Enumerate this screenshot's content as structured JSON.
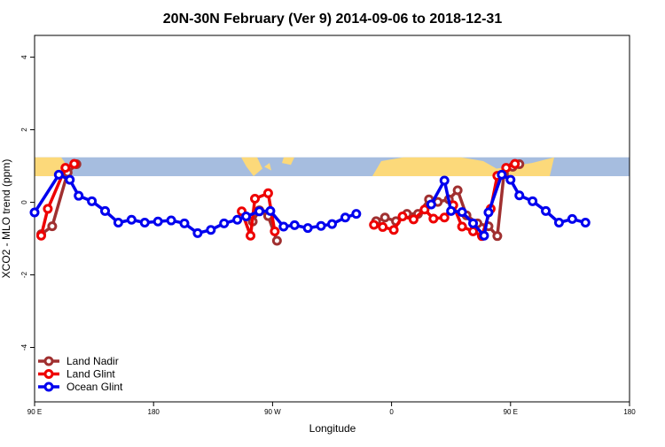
{
  "chart_data": {
    "type": "line",
    "title": "20N-30N February (Ver 9)   2014-09-06 to 2018-12-31",
    "xlabel": "Longitude",
    "ylabel": "XCO2 - MLO trend (ppm)",
    "xlim": [
      -90,
      180
    ],
    "ylim": [
      -5.5,
      4.6
    ],
    "x_ticks": [
      {
        "value": -90,
        "label": "90 E"
      },
      {
        "value": -36,
        "label": "180"
      },
      {
        "value": 18,
        "label": "90 W"
      },
      {
        "value": 72,
        "label": "0"
      },
      {
        "value": 126,
        "label": "90 E"
      },
      {
        "value": 180,
        "label": "180"
      }
    ],
    "y_ticks": [
      {
        "value": -4,
        "label": "-4"
      },
      {
        "value": -2,
        "label": "-2"
      },
      {
        "value": 0,
        "label": "0"
      },
      {
        "value": 2,
        "label": "2"
      },
      {
        "value": 4,
        "label": "4"
      }
    ],
    "map_strip": {
      "y_range": [
        0.72,
        1.24
      ],
      "ocean_color": "#a6bddf",
      "land_color": "#fcd97a"
    },
    "legend": {
      "position": "bottom-left"
    },
    "series": [
      {
        "name": "Land Nadir",
        "color": "#a03030",
        "segments": [
          [
            [
              -87,
              -0.88
            ],
            [
              -82,
              -0.66
            ],
            [
              -75,
              0.82
            ],
            [
              -71,
              1.05
            ]
          ],
          [
            [
              9,
              -0.53
            ],
            [
              12,
              -0.22
            ],
            [
              16,
              -0.38
            ],
            [
              20,
              -1.06
            ]
          ],
          [
            [
              65,
              -0.52
            ],
            [
              69,
              -0.42
            ],
            [
              74,
              -0.52
            ],
            [
              79,
              -0.32
            ],
            [
              84,
              -0.32
            ],
            [
              89,
              0.08
            ],
            [
              93,
              0.01
            ],
            [
              98,
              0.08
            ],
            [
              102,
              0.33
            ],
            [
              106,
              -0.36
            ],
            [
              111,
              -0.58
            ],
            [
              116,
              -0.66
            ],
            [
              120,
              -0.93
            ],
            [
              123,
              0.78
            ],
            [
              127,
              0.98
            ],
            [
              130,
              1.05
            ]
          ]
        ]
      },
      {
        "name": "Land Glint",
        "color": "#ee0000",
        "segments": [
          [
            [
              -87,
              -0.92
            ],
            [
              -84,
              -0.18
            ],
            [
              -76,
              0.95
            ],
            [
              -72,
              1.06
            ]
          ],
          [
            [
              4,
              -0.25
            ],
            [
              8,
              -0.92
            ],
            [
              10,
              0.1
            ],
            [
              16,
              0.25
            ],
            [
              19,
              -0.8
            ]
          ],
          [
            [
              64,
              -0.62
            ],
            [
              68,
              -0.68
            ],
            [
              73,
              -0.76
            ],
            [
              77,
              -0.39
            ],
            [
              82,
              -0.47
            ],
            [
              87,
              -0.2
            ],
            [
              91,
              -0.45
            ],
            [
              96,
              -0.42
            ],
            [
              100,
              -0.08
            ],
            [
              104,
              -0.67
            ],
            [
              109,
              -0.8
            ],
            [
              113,
              -0.93
            ],
            [
              117,
              -0.18
            ],
            [
              120,
              0.73
            ],
            [
              124,
              0.95
            ],
            [
              128,
              1.06
            ]
          ]
        ]
      },
      {
        "name": "Ocean Glint",
        "color": "#0000ee",
        "segments": [
          [
            [
              -90,
              -0.28
            ],
            [
              -79,
              0.76
            ],
            [
              -74,
              0.62
            ],
            [
              -70,
              0.18
            ],
            [
              -64,
              0.03
            ],
            [
              -58,
              -0.24
            ],
            [
              -52,
              -0.56
            ],
            [
              -46,
              -0.48
            ],
            [
              -40,
              -0.56
            ],
            [
              -34,
              -0.53
            ],
            [
              -28,
              -0.5
            ],
            [
              -22,
              -0.58
            ],
            [
              -16,
              -0.85
            ],
            [
              -10,
              -0.76
            ],
            [
              -4,
              -0.58
            ],
            [
              2,
              -0.48
            ],
            [
              6,
              -0.39
            ],
            [
              12,
              -0.25
            ],
            [
              17,
              -0.24
            ],
            [
              23,
              -0.67
            ],
            [
              28,
              -0.63
            ],
            [
              34,
              -0.71
            ],
            [
              40,
              -0.65
            ],
            [
              45,
              -0.6
            ],
            [
              51,
              -0.42
            ],
            [
              56,
              -0.32
            ]
          ],
          [
            [
              90,
              -0.06
            ],
            [
              96,
              0.6
            ],
            [
              99,
              -0.24
            ],
            [
              104,
              -0.27
            ],
            [
              109,
              -0.58
            ],
            [
              114,
              -0.92
            ],
            [
              116,
              -0.28
            ],
            [
              122,
              0.76
            ],
            [
              126,
              0.62
            ],
            [
              130,
              0.19
            ],
            [
              136,
              0.03
            ],
            [
              142,
              -0.24
            ],
            [
              148,
              -0.56
            ],
            [
              154,
              -0.46
            ],
            [
              160,
              -0.56
            ]
          ]
        ]
      }
    ]
  }
}
